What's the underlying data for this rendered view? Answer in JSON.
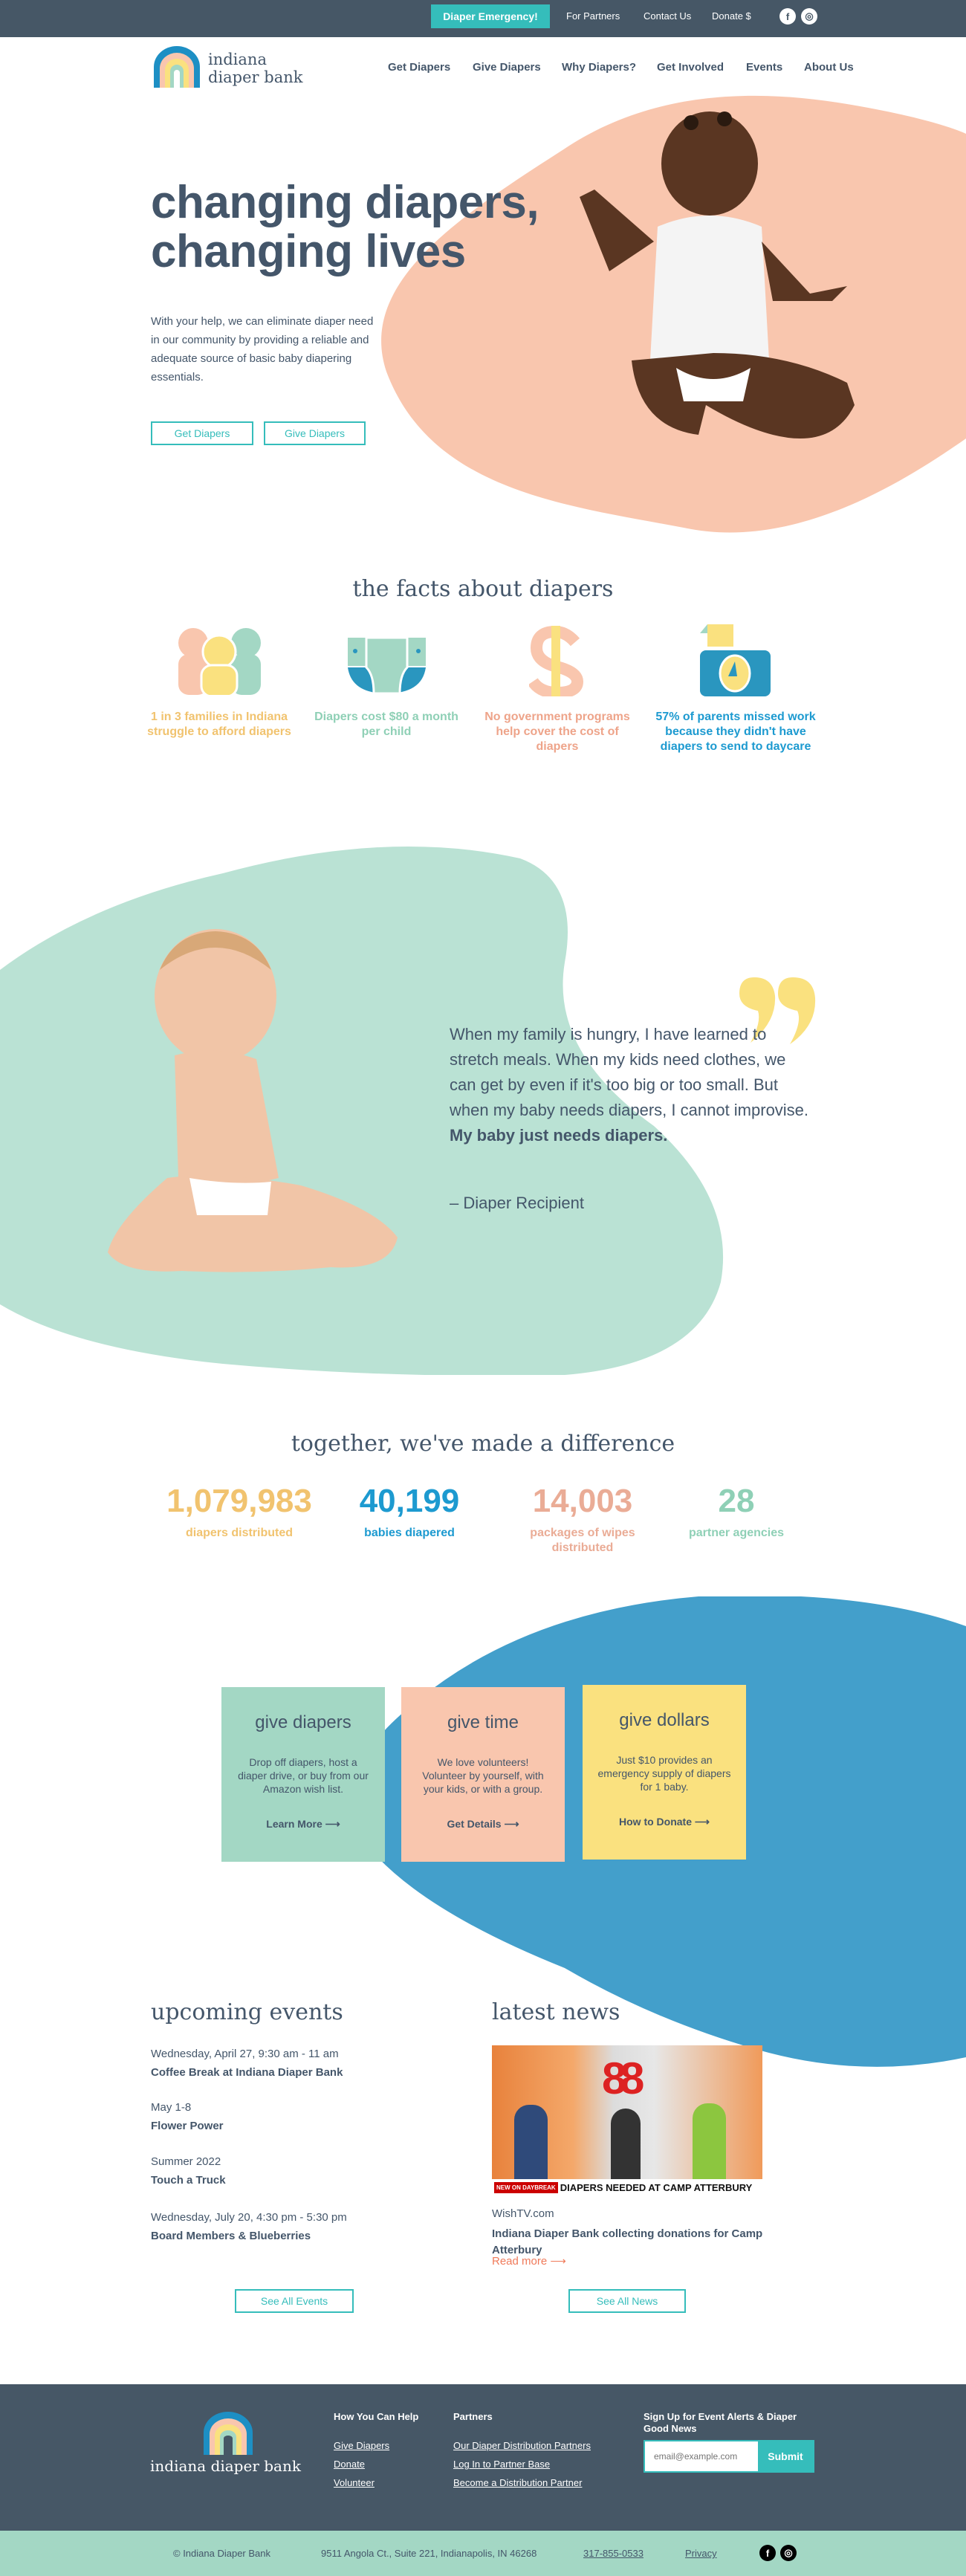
{
  "topbar": {
    "emergency": "Diaper Emergency!",
    "links": [
      "For Partners",
      "Contact Us",
      "Donate $"
    ],
    "social": [
      "facebook-icon",
      "instagram-icon"
    ]
  },
  "logo": {
    "line1": "indiana",
    "line2": "diaper bank"
  },
  "nav": [
    "Get Diapers",
    "Give Diapers",
    "Why Diapers?",
    "Get Involved",
    "Events",
    "About Us"
  ],
  "hero": {
    "title_line1": "changing diapers,",
    "title_line2": "changing lives",
    "text": "With your help, we can eliminate diaper need in our community by providing a reliable and adequate source of basic baby diapering essentials.",
    "buttons": [
      "Get Diapers",
      "Give Diapers"
    ]
  },
  "facts": {
    "heading": "the facts about diapers",
    "items": [
      {
        "text": "1 in 3 families in Indiana struggle to afford diapers",
        "color": "#f1c36f",
        "icon": "family-icon"
      },
      {
        "text": "Diapers cost $80 a month per child",
        "color": "#8fd0b6",
        "icon": "diaper-icon"
      },
      {
        "text": "No government programs help cover the cost of diapers",
        "color": "#eea48a",
        "icon": "dollar-icon"
      },
      {
        "text": "57% of parents missed work because they didn't have diapers to send to daycare",
        "color": "#1d9ad0",
        "icon": "timecard-icon"
      }
    ]
  },
  "quote": {
    "text": "When my family is hungry, I have learned to stretch meals. When my kids need clothes, we can get by even if it's too big or too small. But when my baby needs diapers, I cannot improvise. ",
    "bold": "My baby just needs diapers.",
    "author": "– Diaper Recipient"
  },
  "stats": {
    "heading": "together, we've made a difference",
    "items": [
      {
        "value": "1,079,983",
        "label": "diapers distributed",
        "color": "#f1c36f"
      },
      {
        "value": "40,199",
        "label": "babies diapered",
        "color": "#1d9ad0"
      },
      {
        "value": "14,003",
        "label": "packages of wipes distributed",
        "color": "#eaac96"
      },
      {
        "value": "28",
        "label": "partner agencies",
        "color": "#8fd0b6"
      }
    ]
  },
  "cards": [
    {
      "title": "give diapers",
      "text": "Drop off diapers, host a diaper drive, or buy from our Amazon wish list.",
      "link": "Learn More ⟶",
      "color": "#a3d7c4"
    },
    {
      "title": "give time",
      "text": "We love volunteers! Volunteer by yourself, with your kids, or with a group.",
      "link": "Get Details ⟶",
      "color": "#f9c6ae"
    },
    {
      "title": "give dollars",
      "text": "Just $10 provides an emergency supply of diapers for 1 baby.",
      "link": "How to Donate ⟶",
      "color": "#fae17f"
    }
  ],
  "events": {
    "heading": "upcoming events",
    "items": [
      {
        "date": "Wednesday, April 27, 9:30 am - 11 am",
        "title": "Coffee Break at Indiana Diaper Bank"
      },
      {
        "date": "May 1-8",
        "title": "Flower Power"
      },
      {
        "date": "Summer 2022",
        "title": "Touch a Truck"
      },
      {
        "date": "Wednesday, July 20, 4:30 pm - 5:30 pm",
        "title": "Board Members & Blueberries"
      }
    ],
    "button": "See All Events"
  },
  "news": {
    "heading": "latest news",
    "image_caption_tag": "NEW ON DAYBREAK",
    "image_caption": "DIAPERS NEEDED AT CAMP ATTERBURY",
    "image_logo": "8",
    "source": "WishTV.com",
    "title": "Indiana Diaper Bank collecting donations for Camp Atterbury",
    "read_more": "Read more ⟶",
    "button": "See All News"
  },
  "footer": {
    "logo": "indiana diaper bank",
    "help_heading": "How You Can Help",
    "help_links": [
      "Give Diapers",
      "Donate",
      "Volunteer"
    ],
    "partners_heading": "Partners",
    "partners_links": [
      "Our Diaper Distribution Partners",
      "Log In to Partner Base",
      "Become a Distribution Partner"
    ],
    "signup_heading": "Sign Up for Event Alerts & Diaper Good News",
    "email_placeholder": "email@example.com",
    "submit": "Submit",
    "copyright": "© Indiana Diaper Bank",
    "address": "9511 Angola Ct., Suite 221, Indianapolis, IN 46268",
    "phone": "317-855-0533",
    "privacy": "Privacy"
  },
  "colors": {
    "dark": "#465766",
    "teal": "#35bdbb",
    "peach": "#f9c6ae",
    "mint": "#a3d7c4",
    "yellow": "#fae17f",
    "blue": "#439fcb"
  }
}
